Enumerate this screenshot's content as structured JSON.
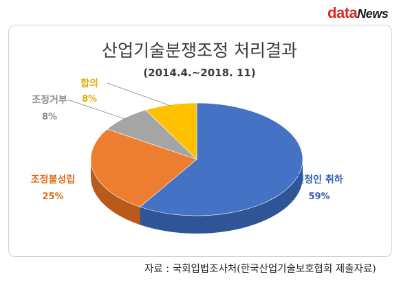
{
  "logo": {
    "d": "d",
    "ata": "ata",
    "news": "News"
  },
  "source": "자료 : 국회입법조사처(한국산업기술보호협회 제출자료)",
  "chart_data": {
    "type": "pie",
    "title": "산업기술분쟁조정 처리결과",
    "subtitle": "(2014.4.~2018. 11)",
    "unit": "%",
    "slices": [
      {
        "label": "신청인 취하",
        "value": 59,
        "value_label": "59%",
        "color": "#4472c4",
        "shade": "#2f5597"
      },
      {
        "label": "조정불성립",
        "value": 25,
        "value_label": "25%",
        "color": "#ed7d31",
        "shade": "#b85a1c"
      },
      {
        "label": "조정거부",
        "value": 8,
        "value_label": "8%",
        "color": "#a5a5a5",
        "shade": "#7b7b7b"
      },
      {
        "label": "합의",
        "value": 8,
        "value_label": "8%",
        "color": "#ffc000",
        "shade": "#c79500"
      }
    ],
    "style": "3d-pie"
  }
}
